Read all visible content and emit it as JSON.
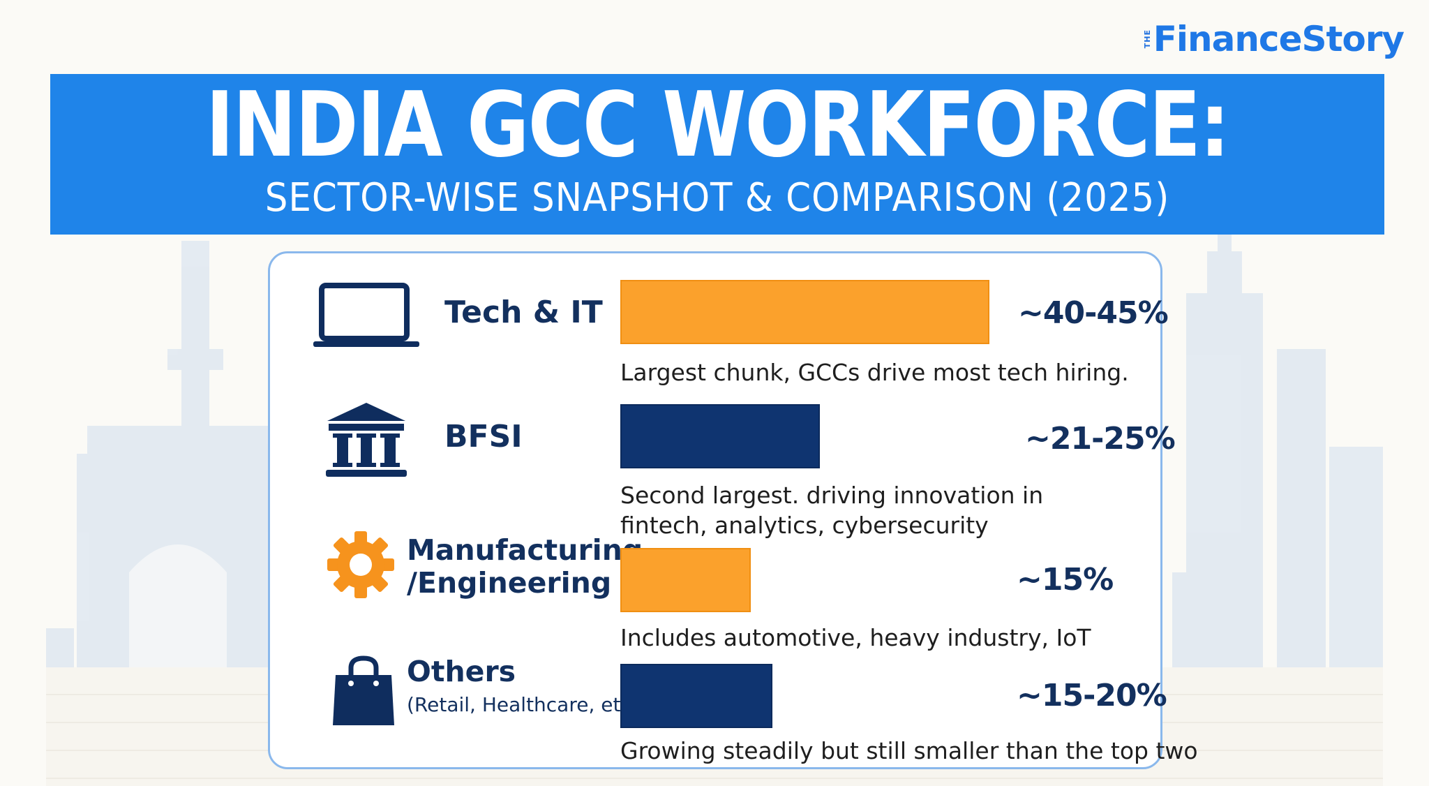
{
  "brand": {
    "logo_small": "THE",
    "logo_main": "FinanceStory"
  },
  "header": {
    "title": "INDIA GCC WORKFORCE:",
    "subtitle": "SECTOR-WISE SNAPSHOT & COMPARISON (2025)"
  },
  "colors": {
    "banner": "#1f84e9",
    "orange": "#fba12c",
    "navy": "#0f3470",
    "text": "#13305e"
  },
  "chart_data": {
    "type": "bar",
    "orientation": "horizontal",
    "categories": [
      "Tech & IT",
      "BFSI",
      "Manufacturing /Engineering",
      "Others"
    ],
    "values": [
      42.5,
      23,
      15,
      17.5
    ],
    "value_labels": [
      "~40-45%",
      "~21-25%",
      "~15%",
      "~15-20%"
    ],
    "bar_colors": [
      "#fba12c",
      "#0f3470",
      "#fba12c",
      "#0f3470"
    ],
    "xlim": [
      0,
      45
    ],
    "title": "INDIA GCC WORKFORCE:",
    "subtitle": "SECTOR-WISE SNAPSHOT & COMPARISON (2025)"
  },
  "sectors": [
    {
      "icon": "laptop-icon",
      "label_line1": "Tech & IT",
      "label_line2": "",
      "sub": "",
      "value_label": "~40-45%",
      "desc_line1": "Largest chunk, GCCs drive most tech hiring.",
      "desc_line2": ""
    },
    {
      "icon": "bank-icon",
      "label_line1": "BFSI",
      "label_line2": "",
      "sub": "",
      "value_label": "~21-25%",
      "desc_line1": "Second largest. driving innovation in",
      "desc_line2": "fintech, analytics, cybersecurity"
    },
    {
      "icon": "gear-icon",
      "label_line1": "Manufacturing",
      "label_line2": "/Engineering",
      "sub": "",
      "value_label": "~15%",
      "desc_line1": "Includes automotive, heavy industry, IoT",
      "desc_line2": ""
    },
    {
      "icon": "shopping-bag-icon",
      "label_line1": "Others",
      "label_line2": "",
      "sub": "(Retail, Healthcare, etc:)",
      "value_label": "~15-20%",
      "desc_line1": "Growing steadily but still smaller than the top two",
      "desc_line2": ""
    }
  ]
}
